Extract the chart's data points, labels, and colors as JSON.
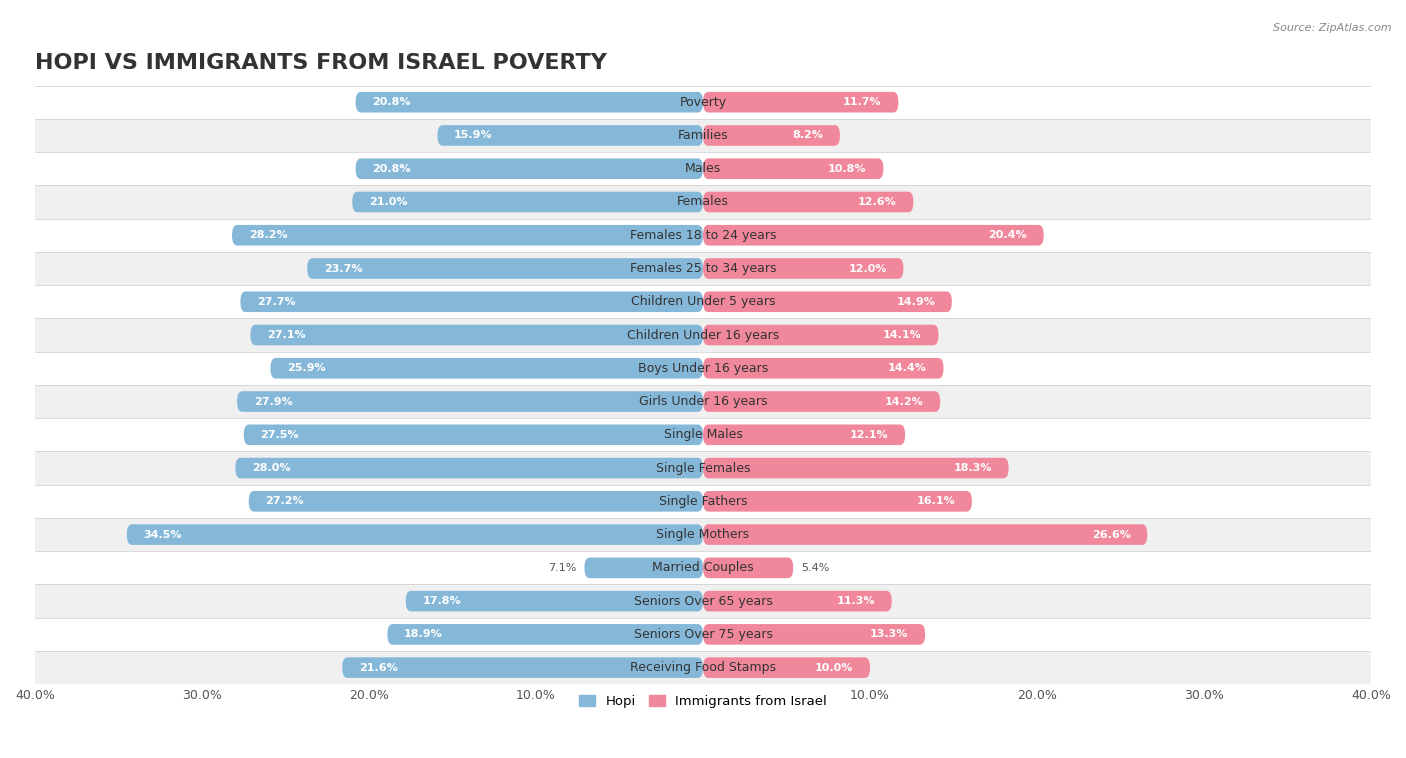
{
  "title": "HOPI VS IMMIGRANTS FROM ISRAEL POVERTY",
  "source": "Source: ZipAtlas.com",
  "categories": [
    "Poverty",
    "Families",
    "Males",
    "Females",
    "Females 18 to 24 years",
    "Females 25 to 34 years",
    "Children Under 5 years",
    "Children Under 16 years",
    "Boys Under 16 years",
    "Girls Under 16 years",
    "Single Males",
    "Single Females",
    "Single Fathers",
    "Single Mothers",
    "Married Couples",
    "Seniors Over 65 years",
    "Seniors Over 75 years",
    "Receiving Food Stamps"
  ],
  "hopi_values": [
    20.8,
    15.9,
    20.8,
    21.0,
    28.2,
    23.7,
    27.7,
    27.1,
    25.9,
    27.9,
    27.5,
    28.0,
    27.2,
    34.5,
    7.1,
    17.8,
    18.9,
    21.6
  ],
  "israel_values": [
    11.7,
    8.2,
    10.8,
    12.6,
    20.4,
    12.0,
    14.9,
    14.1,
    14.4,
    14.2,
    12.1,
    18.3,
    16.1,
    26.6,
    5.4,
    11.3,
    13.3,
    10.0
  ],
  "hopi_color": "#85b8d8",
  "israel_color": "#f0879a",
  "hopi_label": "Hopi",
  "israel_label": "Immigrants from Israel",
  "x_max": 40.0,
  "background_color": "#ffffff",
  "row_color_odd": "#ffffff",
  "row_color_even": "#f0f0f0",
  "title_fontsize": 16,
  "label_fontsize": 9,
  "value_fontsize": 8,
  "axis_tick_fontsize": 9
}
